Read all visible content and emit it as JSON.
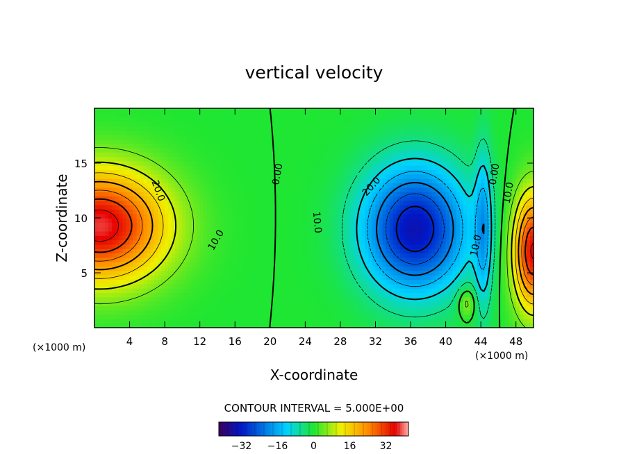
{
  "chart_data": {
    "type": "heatmap",
    "title": "vertical velocity",
    "xlabel": "X-coordinate",
    "ylabel": "Z-coordinate",
    "x_unit_left": "(×1000 m)",
    "x_unit_right": "(×1000 m)",
    "xlim": [
      0,
      50
    ],
    "ylim": [
      0,
      20
    ],
    "x_ticks": [
      4,
      8,
      12,
      16,
      20,
      24,
      28,
      32,
      36,
      40,
      44,
      48
    ],
    "x_tick_labels": [
      "4",
      "8",
      "12",
      "16",
      "20",
      "24",
      "28",
      "32",
      "36",
      "40",
      "44",
      "48"
    ],
    "y_ticks": [
      5,
      10,
      15
    ],
    "y_tick_labels": [
      "5",
      "10",
      "15"
    ],
    "contour_interval_text": "CONTOUR INTERVAL = 5.000E+00",
    "contour_interval": 5,
    "contour_labels": [
      {
        "text": "20.0",
        "x": 7.3,
        "y": 12.5,
        "angle": 70
      },
      {
        "text": "10.0",
        "x": 13.8,
        "y": 8.0,
        "angle": -60
      },
      {
        "text": "0.00",
        "x": 20.8,
        "y": 14.0,
        "angle": -80
      },
      {
        "text": "10.0",
        "x": 25.4,
        "y": 9.6,
        "angle": 85
      },
      {
        "text": "20.0",
        "x": 31.5,
        "y": 12.9,
        "angle": -48
      },
      {
        "text": "10.0",
        "x": 43.4,
        "y": 7.5,
        "angle": -78
      },
      {
        "text": "0.00",
        "x": 45.5,
        "y": 14.0,
        "angle": -80
      },
      {
        "text": "10.0",
        "x": 47.1,
        "y": 12.3,
        "angle": -80
      }
    ],
    "fields": [
      {
        "name": "updraft-west",
        "amp": 38,
        "x0": 0.6,
        "z0": 9.3,
        "sx": 7.5,
        "sz": 5.0
      },
      {
        "name": "downdraft-center",
        "amp": -34,
        "x0": 36.5,
        "z0": 9.0,
        "sx": 6.0,
        "sz": 5.8
      },
      {
        "name": "updraft-east",
        "amp": 36,
        "x0": 50.0,
        "z0": 7.0,
        "sx": 2.3,
        "sz": 5.2
      },
      {
        "name": "downdraft-east-narrow",
        "amp": -14,
        "x0": 44.3,
        "z0": 9.0,
        "sx": 1.0,
        "sz": 7.5
      },
      {
        "name": "small-updraft",
        "amp": 9,
        "x0": 42.4,
        "z0": 2.3,
        "sx": 1.0,
        "sz": 1.4
      }
    ],
    "colorbar": {
      "min": -42,
      "max": 42,
      "ticks": [
        -32,
        -16,
        0,
        16,
        32
      ],
      "tick_labels": [
        "−32",
        "−16",
        "0",
        "16",
        "32"
      ]
    },
    "colors": {
      "neg_deep": "#3b005a",
      "blue": "#0018c8",
      "cyan": "#00d2ff",
      "zero_green": "#1ee632",
      "yellow": "#f0f000",
      "orange": "#ff8c00",
      "red": "#e60000",
      "pos_pink": "#ffb0a8"
    }
  }
}
